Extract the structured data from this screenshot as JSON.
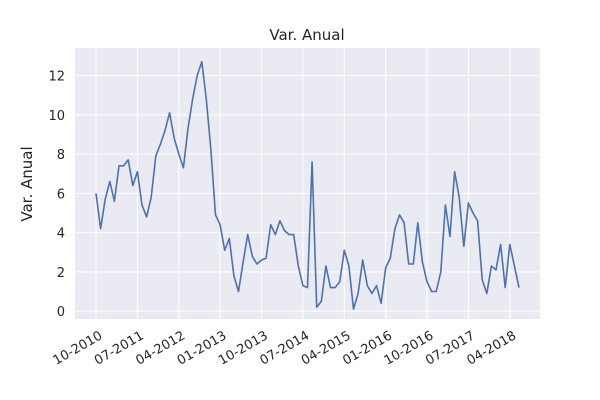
{
  "chart_data": {
    "type": "line",
    "title": "Var. Anual",
    "xlabel": "",
    "ylabel": "Var. Anual",
    "ylim": [
      -0.4,
      13.4
    ],
    "yticks": [
      0,
      2,
      4,
      6,
      8,
      10,
      12
    ],
    "grid": true,
    "colors": {
      "background": "#eaeaf2",
      "line": "#4c72b0",
      "grid": "#ffffff"
    },
    "xticks": [
      "10-2010",
      "07-2011",
      "04-2012",
      "01-2013",
      "10-2013",
      "07-2014",
      "04-2015",
      "01-2016",
      "10-2016",
      "07-2017",
      "04-2018"
    ],
    "x": [
      "10-2010",
      "11-2010",
      "12-2010",
      "01-2011",
      "02-2011",
      "03-2011",
      "04-2011",
      "05-2011",
      "06-2011",
      "07-2011",
      "08-2011",
      "09-2011",
      "10-2011",
      "11-2011",
      "12-2011",
      "01-2012",
      "02-2012",
      "03-2012",
      "04-2012",
      "05-2012",
      "06-2012",
      "07-2012",
      "08-2012",
      "09-2012",
      "10-2012",
      "11-2012",
      "12-2012",
      "01-2013",
      "02-2013",
      "03-2013",
      "04-2013",
      "05-2013",
      "06-2013",
      "07-2013",
      "08-2013",
      "09-2013",
      "10-2013",
      "11-2013",
      "12-2013",
      "01-2014",
      "02-2014",
      "03-2014",
      "04-2014",
      "05-2014",
      "06-2014",
      "07-2014",
      "08-2014",
      "09-2014",
      "10-2014",
      "11-2014",
      "12-2014",
      "01-2015",
      "02-2015",
      "03-2015",
      "04-2015",
      "05-2015",
      "06-2015",
      "07-2015",
      "08-2015",
      "09-2015",
      "10-2015",
      "11-2015",
      "12-2015",
      "01-2016",
      "02-2016",
      "03-2016",
      "04-2016",
      "05-2016",
      "06-2016",
      "07-2016",
      "08-2016",
      "09-2016",
      "10-2016",
      "11-2016",
      "12-2016",
      "01-2017",
      "02-2017",
      "03-2017",
      "04-2017",
      "05-2017",
      "06-2017",
      "07-2017",
      "08-2017",
      "09-2017",
      "10-2017",
      "11-2017",
      "12-2017",
      "01-2018",
      "02-2018",
      "03-2018",
      "04-2018",
      "05-2018",
      "06-2018"
    ],
    "series": [
      {
        "values": [
          6.0,
          4.2,
          5.7,
          6.6,
          5.6,
          7.4,
          7.4,
          7.7,
          6.4,
          7.1,
          5.4,
          4.8,
          5.8,
          7.9,
          8.5,
          9.2,
          10.1,
          8.8,
          8.0,
          7.3,
          9.3,
          10.8,
          12.0,
          12.7,
          10.8,
          8.2,
          4.9,
          4.4,
          3.1,
          3.7,
          1.8,
          1.0,
          2.5,
          3.9,
          2.8,
          2.4,
          2.6,
          2.7,
          4.4,
          3.9,
          4.6,
          4.1,
          3.9,
          3.9,
          2.3,
          1.3,
          1.2,
          7.6,
          0.2,
          0.5,
          2.3,
          1.2,
          1.2,
          1.5,
          3.1,
          2.3,
          0.1,
          0.9,
          2.6,
          1.3,
          0.9,
          1.3,
          0.4,
          2.2,
          2.7,
          4.2,
          4.9,
          4.5,
          2.4,
          2.4,
          4.5,
          2.5,
          1.5,
          1.0,
          1.0,
          2.0,
          5.4,
          3.8,
          7.1,
          5.8,
          3.3,
          5.5,
          5.0,
          4.6,
          1.6,
          0.9,
          2.3,
          2.1,
          3.4,
          1.2,
          3.4,
          2.3,
          1.2
        ]
      }
    ]
  }
}
